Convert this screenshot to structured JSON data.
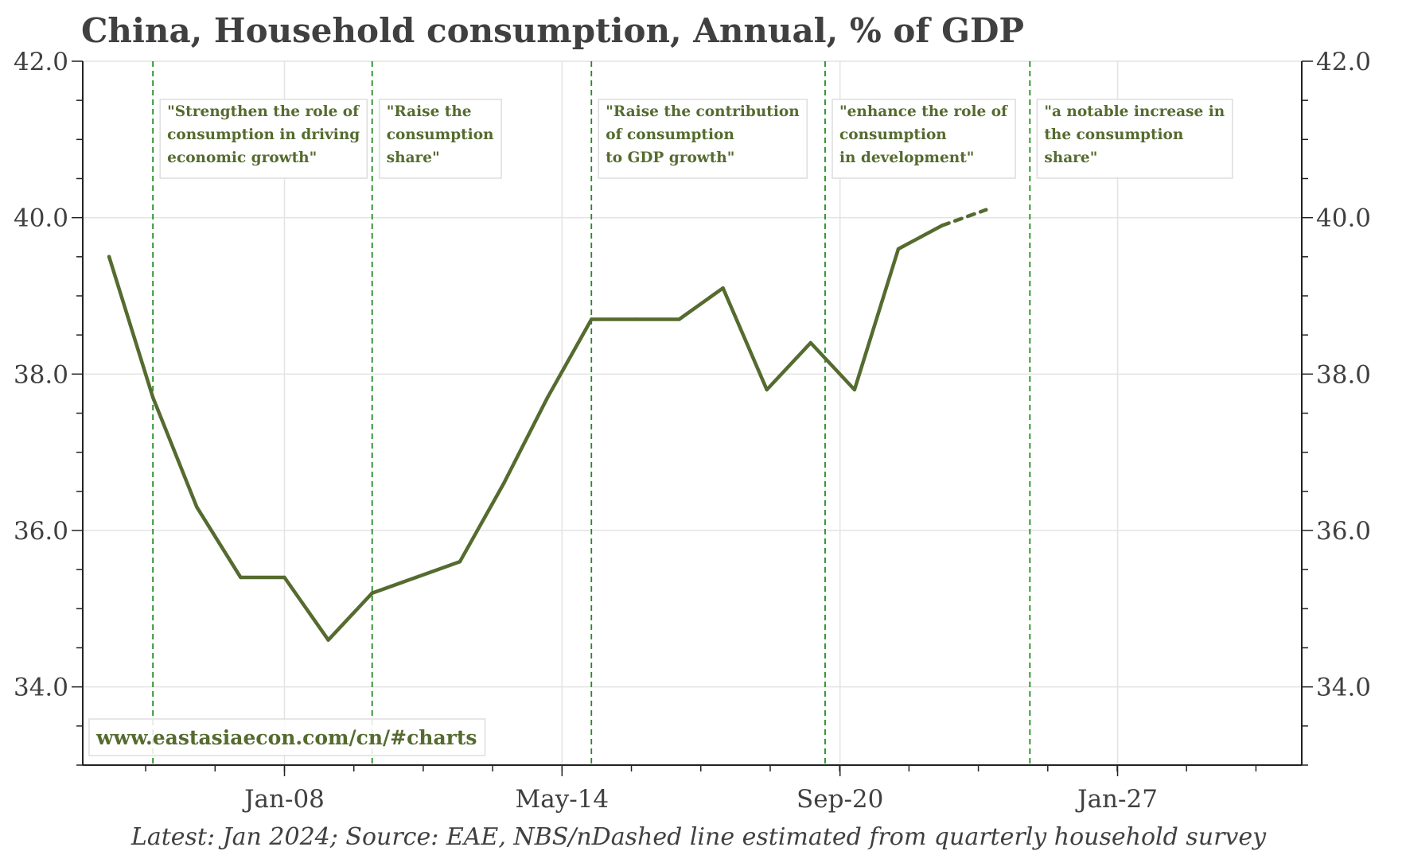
{
  "chart_data": {
    "type": "line",
    "title": "China, Household consumption, Annual, % of GDP",
    "source": "Latest: Jan 2024; Source: EAE, NBS/nDashed line estimated from quarterly household survey",
    "watermark": "www.eastasiaecon.com/cn/#charts",
    "xlabel": "",
    "ylabel": "",
    "ylim": [
      33.0,
      42.0
    ],
    "yticks": [
      34.0,
      36.0,
      38.0,
      40.0,
      42.0
    ],
    "ytick_labels": [
      "34.0",
      "36.0",
      "38.0",
      "40.0",
      "42.0"
    ],
    "right_ytick_labels": [
      "34.0",
      "36.0",
      "38.0",
      "40.0",
      "42.0"
    ],
    "xlim": [
      2003.4,
      2031.2
    ],
    "xticks": [
      2008.0,
      2014.33,
      2020.67,
      2027.0
    ],
    "xtick_labels": [
      "Jan-08",
      "May-14",
      "Sep-20",
      "Jan-27"
    ],
    "grid": true,
    "series": [
      {
        "name": "Household consumption (% of GDP)",
        "color": "#556B2F",
        "style": "solid",
        "x": [
          2004,
          2005,
          2006,
          2007,
          2008,
          2009,
          2010,
          2011,
          2012,
          2013,
          2014,
          2015,
          2016,
          2017,
          2018,
          2019,
          2020,
          2021,
          2022,
          2023
        ],
        "values": [
          39.5,
          37.7,
          36.3,
          35.4,
          35.4,
          34.6,
          35.2,
          35.4,
          35.6,
          36.6,
          37.7,
          38.7,
          38.7,
          38.7,
          39.1,
          37.8,
          38.4,
          37.8,
          39.6,
          39.9
        ]
      },
      {
        "name": "Estimated from quarterly household survey",
        "color": "#556B2F",
        "style": "dashed",
        "x": [
          2023,
          2024
        ],
        "values": [
          39.9,
          40.1
        ]
      }
    ],
    "vlines": {
      "color": "#228B22",
      "x": [
        2005.0,
        2010.0,
        2015.0,
        2020.33,
        2025.0
      ]
    },
    "annotations": [
      {
        "x": 2005.0,
        "lines": [
          "\"Strengthen the role of",
          "consumption in driving",
          "economic growth\""
        ]
      },
      {
        "x": 2010.0,
        "lines": [
          "\"Raise the",
          "consumption",
          "share\""
        ]
      },
      {
        "x": 2015.0,
        "lines": [
          "\"Raise the contribution",
          "of consumption",
          "to GDP growth\""
        ]
      },
      {
        "x": 2020.33,
        "lines": [
          "\"enhance the role of",
          "consumption",
          "in development\""
        ]
      },
      {
        "x": 2025.0,
        "lines": [
          "\"a notable increase in",
          "the consumption",
          "share\""
        ]
      }
    ]
  }
}
